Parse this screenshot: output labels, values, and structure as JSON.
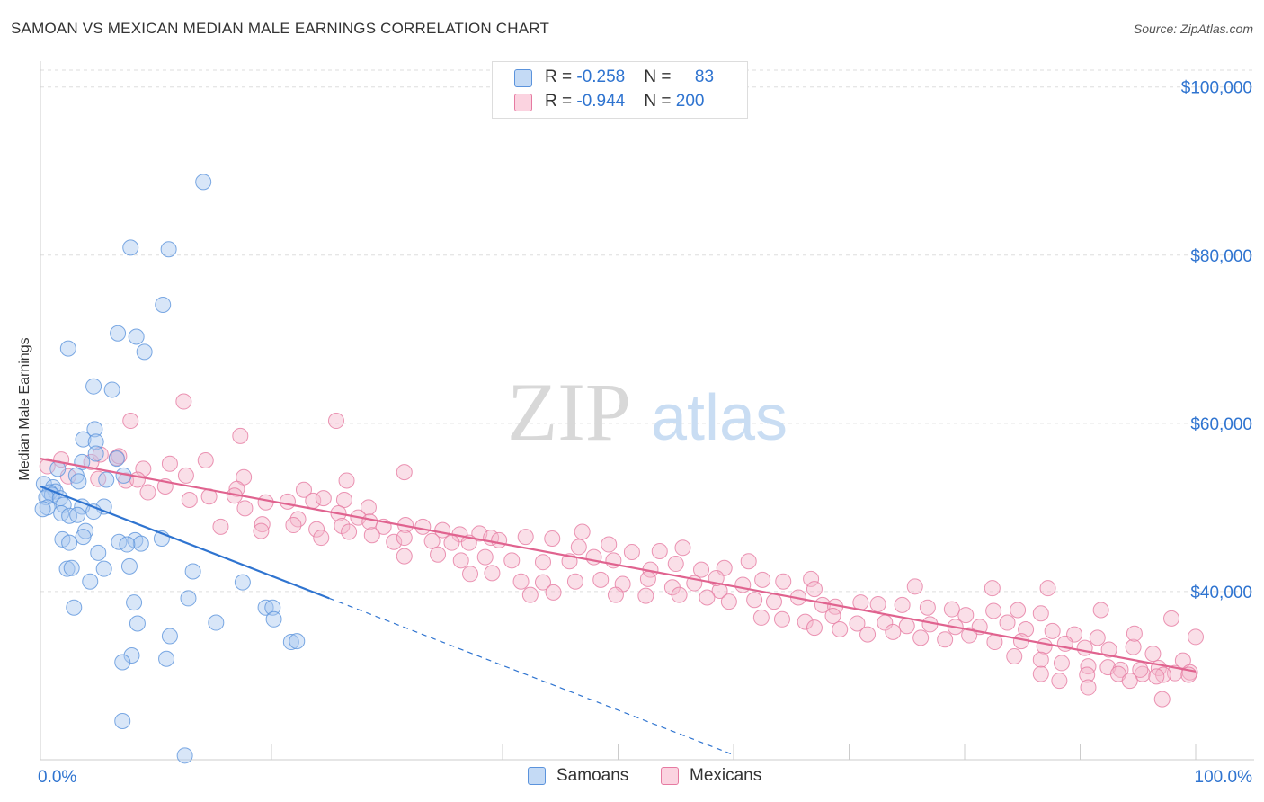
{
  "header": {
    "title": "SAMOAN VS MEXICAN MEDIAN MALE EARNINGS CORRELATION CHART",
    "source": "Source: ZipAtlas.com"
  },
  "watermark": {
    "zip": "ZIP",
    "atlas": "atlas"
  },
  "legend": {
    "rows": [
      {
        "r_label": "R = ",
        "r_value": "-0.258",
        "n_label": "N = ",
        "n_value": "83",
        "color": "#a8c8f0"
      },
      {
        "r_label": "R = ",
        "r_value": "-0.944",
        "n_label": "N = ",
        "n_value": "200",
        "color": "#f5b8cc"
      }
    ]
  },
  "bottom_legend": [
    {
      "label": "Samoans",
      "color": "#a8c8f0"
    },
    {
      "label": "Mexicans",
      "color": "#f5b8cc"
    }
  ],
  "chart_data": {
    "type": "scatter",
    "title": "SAMOAN VS MEXICAN MEDIAN MALE EARNINGS CORRELATION CHART",
    "xlabel": "",
    "ylabel": "Median Male Earnings",
    "xlim": [
      0,
      100
    ],
    "ylim": [
      20000,
      102000
    ],
    "x_tick_labels": [
      "0.0%",
      "100.0%"
    ],
    "y_ticks": [
      40000,
      60000,
      80000,
      100000
    ],
    "y_tick_labels": [
      "$40,000",
      "$60,000",
      "$80,000",
      "$100,000"
    ],
    "grid": true,
    "legend_position": "top-center",
    "series": [
      {
        "name": "Samoans",
        "color": "#a8c8f0",
        "stroke": "#5b93dc",
        "trend": {
          "x0": 0,
          "y0": 52500,
          "x1": 25,
          "y1": 39200,
          "dash_to_x": 60
        },
        "points": [
          [
            14.1,
            88700
          ],
          [
            7.8,
            80900
          ],
          [
            11.1,
            80700
          ],
          [
            10.6,
            74100
          ],
          [
            6.7,
            70700
          ],
          [
            8.3,
            70300
          ],
          [
            2.4,
            68900
          ],
          [
            9.0,
            68500
          ],
          [
            4.6,
            64400
          ],
          [
            6.2,
            64000
          ],
          [
            4.7,
            59300
          ],
          [
            3.7,
            58100
          ],
          [
            4.8,
            57800
          ],
          [
            4.8,
            56400
          ],
          [
            6.6,
            55800
          ],
          [
            3.6,
            55400
          ],
          [
            1.5,
            54600
          ],
          [
            3.1,
            53800
          ],
          [
            7.2,
            53800
          ],
          [
            5.7,
            53300
          ],
          [
            3.3,
            53100
          ],
          [
            0.3,
            52800
          ],
          [
            1.1,
            52400
          ],
          [
            1.3,
            51900
          ],
          [
            0.8,
            51800
          ],
          [
            1.0,
            51500
          ],
          [
            0.5,
            51200
          ],
          [
            1.7,
            51100
          ],
          [
            2.0,
            50300
          ],
          [
            0.6,
            50000
          ],
          [
            5.5,
            50100
          ],
          [
            3.6,
            50100
          ],
          [
            0.2,
            49800
          ],
          [
            1.8,
            49300
          ],
          [
            2.5,
            49000
          ],
          [
            3.2,
            49100
          ],
          [
            4.6,
            49500
          ],
          [
            8.2,
            46100
          ],
          [
            3.9,
            47200
          ],
          [
            6.8,
            45900
          ],
          [
            1.9,
            46200
          ],
          [
            10.5,
            46300
          ],
          [
            8.7,
            45700
          ],
          [
            3.7,
            46500
          ],
          [
            2.5,
            45800
          ],
          [
            7.5,
            45600
          ],
          [
            5.0,
            44600
          ],
          [
            2.3,
            42700
          ],
          [
            2.7,
            42800
          ],
          [
            5.5,
            42700
          ],
          [
            7.7,
            43000
          ],
          [
            13.2,
            42400
          ],
          [
            4.3,
            41200
          ],
          [
            17.5,
            41100
          ],
          [
            8.1,
            38700
          ],
          [
            12.8,
            39200
          ],
          [
            19.5,
            38100
          ],
          [
            20.1,
            38100
          ],
          [
            2.9,
            38100
          ],
          [
            20.2,
            36700
          ],
          [
            15.2,
            36300
          ],
          [
            8.4,
            36200
          ],
          [
            11.2,
            34700
          ],
          [
            21.7,
            34000
          ],
          [
            22.2,
            34100
          ],
          [
            7.9,
            32400
          ],
          [
            10.9,
            32000
          ],
          [
            7.1,
            31600
          ],
          [
            7.1,
            24600
          ],
          [
            12.5,
            20500
          ]
        ]
      },
      {
        "name": "Mexicans",
        "color": "#f5b8cc",
        "stroke": "#e67aa1",
        "trend": {
          "x0": 0,
          "y0": 55800,
          "x1": 100,
          "y1": 30500
        },
        "points": [
          [
            1.8,
            55700
          ],
          [
            0.6,
            54900
          ],
          [
            2.4,
            53700
          ],
          [
            4.4,
            55400
          ],
          [
            6.6,
            55900
          ],
          [
            8.9,
            54600
          ],
          [
            11.2,
            55200
          ],
          [
            14.3,
            55600
          ],
          [
            7.8,
            60300
          ],
          [
            12.4,
            62600
          ],
          [
            17.3,
            58500
          ],
          [
            25.6,
            60300
          ],
          [
            5.0,
            53400
          ],
          [
            7.4,
            53200
          ],
          [
            12.6,
            53800
          ],
          [
            17.6,
            53600
          ],
          [
            17.0,
            52200
          ],
          [
            22.8,
            52100
          ],
          [
            26.5,
            53200
          ],
          [
            31.5,
            54200
          ],
          [
            9.3,
            51800
          ],
          [
            14.6,
            51300
          ],
          [
            17.7,
            49900
          ],
          [
            19.5,
            50600
          ],
          [
            21.4,
            50700
          ],
          [
            23.6,
            50800
          ],
          [
            24.5,
            51100
          ],
          [
            26.3,
            50900
          ],
          [
            28.4,
            50000
          ],
          [
            22.3,
            48600
          ],
          [
            25.8,
            49300
          ],
          [
            27.5,
            48800
          ],
          [
            28.5,
            48300
          ],
          [
            15.6,
            47700
          ],
          [
            19.2,
            48000
          ],
          [
            23.9,
            47400
          ],
          [
            26.1,
            47800
          ],
          [
            26.7,
            47100
          ],
          [
            29.7,
            47700
          ],
          [
            31.6,
            47900
          ],
          [
            33.1,
            47700
          ],
          [
            34.8,
            47300
          ],
          [
            36.3,
            46800
          ],
          [
            38.0,
            46900
          ],
          [
            39.0,
            46400
          ],
          [
            28.7,
            46700
          ],
          [
            30.6,
            45900
          ],
          [
            31.5,
            46400
          ],
          [
            33.9,
            46000
          ],
          [
            35.6,
            45800
          ],
          [
            37.1,
            45800
          ],
          [
            39.7,
            46100
          ],
          [
            42.0,
            46500
          ],
          [
            44.3,
            46300
          ],
          [
            46.9,
            47100
          ],
          [
            46.6,
            45300
          ],
          [
            49.2,
            45600
          ],
          [
            31.5,
            44200
          ],
          [
            34.4,
            44400
          ],
          [
            36.4,
            43700
          ],
          [
            38.5,
            44100
          ],
          [
            40.8,
            43700
          ],
          [
            43.5,
            43500
          ],
          [
            45.8,
            43600
          ],
          [
            47.9,
            44100
          ],
          [
            51.2,
            44700
          ],
          [
            53.6,
            44800
          ],
          [
            55.6,
            45200
          ],
          [
            52.8,
            42600
          ],
          [
            55.0,
            43300
          ],
          [
            57.2,
            42600
          ],
          [
            59.2,
            42800
          ],
          [
            61.3,
            43600
          ],
          [
            37.2,
            42100
          ],
          [
            39.1,
            42200
          ],
          [
            41.6,
            41200
          ],
          [
            43.5,
            41100
          ],
          [
            46.3,
            41200
          ],
          [
            48.5,
            41400
          ],
          [
            50.4,
            40900
          ],
          [
            52.6,
            41500
          ],
          [
            54.7,
            40500
          ],
          [
            56.6,
            41000
          ],
          [
            58.8,
            40100
          ],
          [
            60.8,
            40800
          ],
          [
            62.5,
            41400
          ],
          [
            64.3,
            41200
          ],
          [
            66.7,
            41500
          ],
          [
            42.4,
            39600
          ],
          [
            44.4,
            39900
          ],
          [
            49.8,
            39600
          ],
          [
            52.4,
            39500
          ],
          [
            55.3,
            39600
          ],
          [
            57.7,
            39300
          ],
          [
            59.6,
            38800
          ],
          [
            61.8,
            39000
          ],
          [
            63.5,
            38800
          ],
          [
            65.6,
            39300
          ],
          [
            67.7,
            38400
          ],
          [
            68.8,
            38200
          ],
          [
            71.0,
            38700
          ],
          [
            72.5,
            38500
          ],
          [
            74.6,
            38400
          ],
          [
            76.8,
            38100
          ],
          [
            78.9,
            37900
          ],
          [
            80.1,
            37200
          ],
          [
            82.5,
            37700
          ],
          [
            84.6,
            37800
          ],
          [
            86.6,
            37400
          ],
          [
            62.4,
            36900
          ],
          [
            64.2,
            36700
          ],
          [
            66.2,
            36400
          ],
          [
            68.6,
            37100
          ],
          [
            70.7,
            36200
          ],
          [
            73.1,
            36300
          ],
          [
            75.0,
            35900
          ],
          [
            77.0,
            36100
          ],
          [
            79.2,
            35800
          ],
          [
            81.3,
            35800
          ],
          [
            83.7,
            36300
          ],
          [
            85.3,
            35500
          ],
          [
            87.6,
            35300
          ],
          [
            89.5,
            34900
          ],
          [
            91.5,
            34500
          ],
          [
            67.0,
            35700
          ],
          [
            69.2,
            35500
          ],
          [
            71.6,
            34900
          ],
          [
            73.8,
            35200
          ],
          [
            76.2,
            34500
          ],
          [
            78.3,
            34300
          ],
          [
            80.4,
            34800
          ],
          [
            82.6,
            34000
          ],
          [
            84.9,
            34100
          ],
          [
            86.9,
            33500
          ],
          [
            88.7,
            33800
          ],
          [
            90.4,
            33300
          ],
          [
            92.5,
            33100
          ],
          [
            94.6,
            33400
          ],
          [
            96.3,
            32600
          ],
          [
            98.9,
            31800
          ],
          [
            84.3,
            32300
          ],
          [
            86.6,
            31900
          ],
          [
            88.4,
            31500
          ],
          [
            90.7,
            31100
          ],
          [
            92.4,
            31000
          ],
          [
            93.5,
            30700
          ],
          [
            95.4,
            30200
          ],
          [
            96.8,
            30900
          ],
          [
            98.2,
            30300
          ],
          [
            86.6,
            30200
          ],
          [
            90.6,
            30100
          ],
          [
            93.3,
            30200
          ],
          [
            95.2,
            30700
          ],
          [
            97.2,
            30100
          ],
          [
            99.5,
            30400
          ],
          [
            88.2,
            29400
          ],
          [
            90.7,
            28600
          ],
          [
            94.3,
            29400
          ],
          [
            96.6,
            29900
          ],
          [
            99.4,
            30100
          ],
          [
            97.1,
            27200
          ],
          [
            100.0,
            34600
          ],
          [
            97.9,
            36800
          ],
          [
            94.7,
            35000
          ],
          [
            91.8,
            37800
          ],
          [
            87.2,
            40400
          ],
          [
            82.4,
            40400
          ],
          [
            75.7,
            40600
          ],
          [
            67.0,
            40300
          ],
          [
            58.5,
            41600
          ],
          [
            49.6,
            43700
          ],
          [
            24.3,
            46400
          ],
          [
            21.9,
            47900
          ],
          [
            19.1,
            47200
          ],
          [
            16.8,
            51400
          ],
          [
            12.9,
            50900
          ],
          [
            10.8,
            52500
          ],
          [
            8.4,
            53300
          ],
          [
            6.8,
            56100
          ],
          [
            5.2,
            56300
          ]
        ]
      }
    ]
  }
}
